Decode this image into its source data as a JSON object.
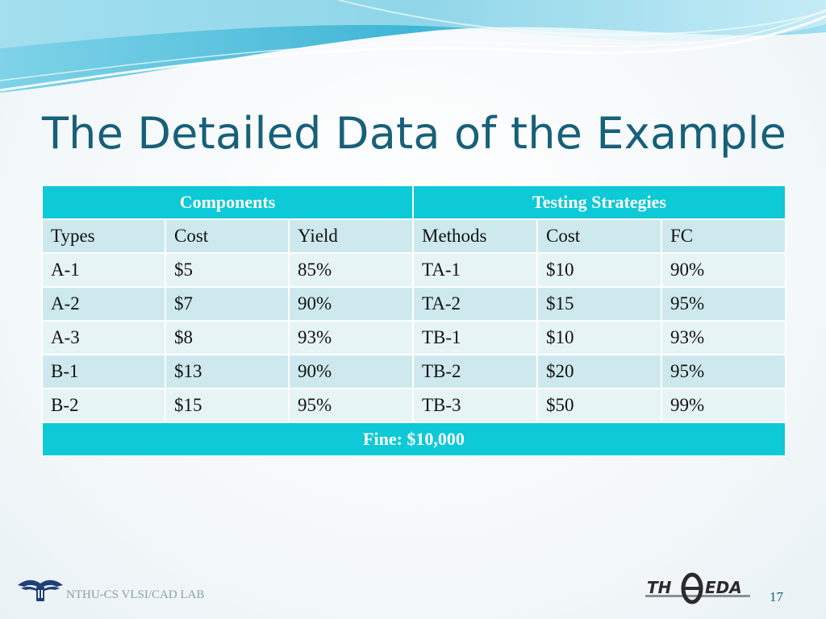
{
  "slide": {
    "title": "The Detailed Data of the Example",
    "page_number": "17"
  },
  "table": {
    "group_headers": [
      "Components",
      "Testing Strategies"
    ],
    "column_headers": [
      "Types",
      "Cost",
      "Yield",
      "Methods",
      "Cost",
      "FC"
    ],
    "rows": [
      [
        "A-1",
        "$5",
        "85%",
        "TA-1",
        "$10",
        "90%"
      ],
      [
        "A-2",
        "$7",
        "90%",
        "TA-2",
        "$15",
        "95%"
      ],
      [
        "A-3",
        "$8",
        "93%",
        "TB-1",
        "$10",
        "93%"
      ],
      [
        "B-1",
        "$13",
        "90%",
        "TB-2",
        "$20",
        "95%"
      ],
      [
        "B-2",
        "$15",
        "95%",
        "TB-3",
        "$50",
        "99%"
      ]
    ],
    "footer": "Fine: $10,000"
  },
  "footer": {
    "lab_name": "NTHU-CS VLSI/CAD LAB",
    "logo_text": "TH EDA"
  },
  "colors": {
    "title": "#17607a",
    "header_cyan": "#0ec9d6",
    "row_light": "#e6f4f6",
    "row_dark": "#cde9ee"
  },
  "icons": [
    "nthu-lab-logo-icon",
    "theda-logo-icon"
  ]
}
